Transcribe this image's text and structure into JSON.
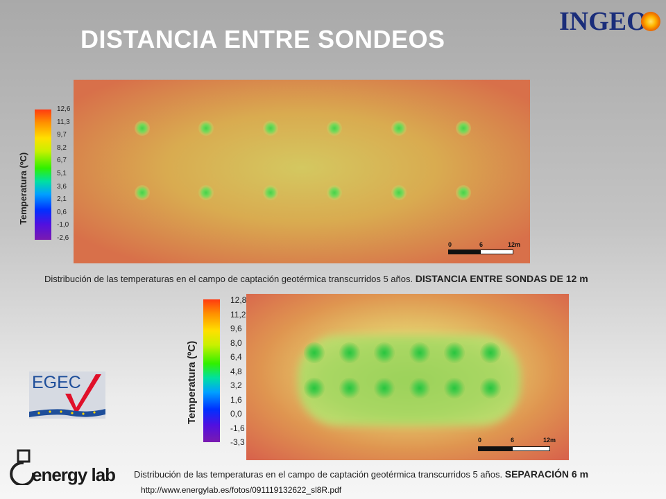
{
  "title": "DISTANCIA ENTRE SONDEOS",
  "logo_ingeo": "INGEO",
  "logo_egec": "EGEC",
  "logo_energylab": "energy lab",
  "map1": {
    "legend_title": "Temperatura (ºC)",
    "legend_ticks": [
      "12,6",
      "11,3",
      "9,7",
      "8,2",
      "6,7",
      "5,1",
      "3,6",
      "2,1",
      "0,6",
      "-1,0",
      "-2,6"
    ],
    "scale": [
      "0",
      "6",
      "12m"
    ],
    "caption_text": "Distribución de las temperaturas en el campo de captación geotérmica transcurridos 5 años.",
    "caption_bold": "DISTANCIA ENTRE SONDAS DE 12 m"
  },
  "map2": {
    "legend_title": "Temperatura (ºC)",
    "legend_ticks": [
      "12,8",
      "11,2",
      "9,6",
      "8,0",
      "6,4",
      "4,8",
      "3,2",
      "1,6",
      "0,0",
      "-1,6",
      "-3,3"
    ],
    "scale": [
      "0",
      "6",
      "12m"
    ],
    "caption_text": "Distribución de las temperaturas en el campo de captación geotérmica transcurridos 5 años.",
    "caption_bold": "SEPARACIÓN 6 m"
  },
  "url": "http://www.energylab.es/fotos/091119132622_sl8R.pdf",
  "colors": {
    "title": "#ffffff",
    "ingeo_blue": "#1a2d7a",
    "egec_blue": "#1e4e9a",
    "egec_red": "#e0102a"
  }
}
